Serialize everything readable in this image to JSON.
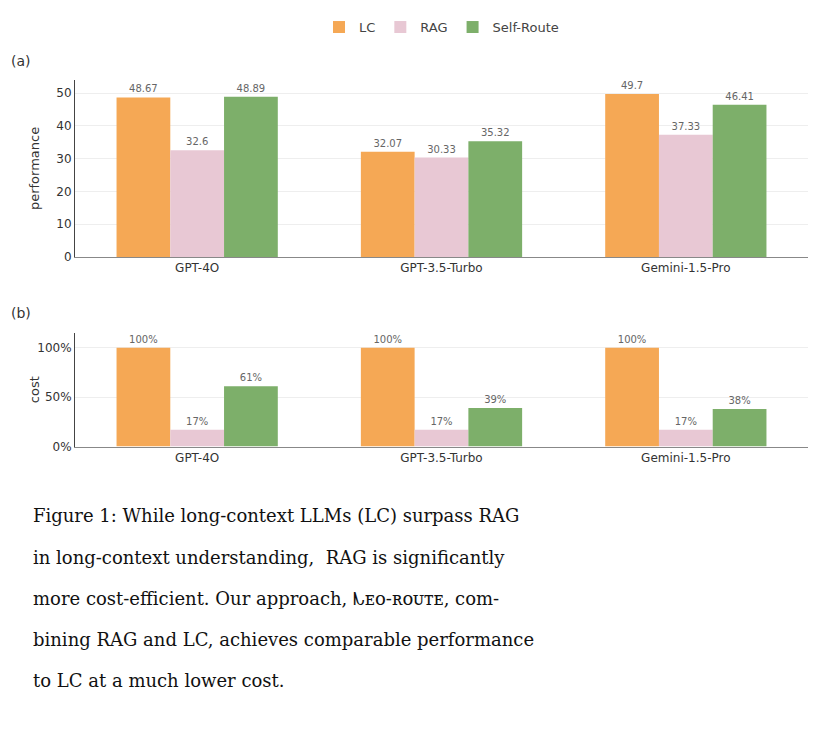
{
  "chart_data": [
    {
      "type": "bar",
      "title": "(a)",
      "y_label": "performance",
      "categories": [
        "GPT-4O",
        "GPT-3.5-Turbo",
        "Gemini-1.5-Pro"
      ],
      "series": [
        {
          "name": "LC",
          "color": "#F5A855",
          "values": [
            48.67,
            32.07,
            49.7
          ]
        },
        {
          "name": "RAG",
          "color": "#E8C8D4",
          "values": [
            32.6,
            30.33,
            37.33
          ]
        },
        {
          "name": "Self-Route",
          "color": "#7DAF6A",
          "values": [
            48.89,
            35.32,
            46.41
          ]
        }
      ],
      "ylim": [
        0,
        54
      ],
      "yticks": [
        0,
        10,
        20,
        30,
        40,
        50
      ],
      "grid": true,
      "data_labels": true,
      "legend": "top"
    },
    {
      "type": "bar",
      "title": "(b)",
      "y_label": "cost",
      "categories": [
        "GPT-4O",
        "GPT-3.5-Turbo",
        "Gemini-1.5-Pro"
      ],
      "series": [
        {
          "name": "LC",
          "color": "#F5A855",
          "values": [
            1.0,
            1.0,
            1.0
          ],
          "value_labels": [
            "100%",
            "100%",
            "100%"
          ]
        },
        {
          "name": "RAG",
          "color": "#E8C8D4",
          "values": [
            0.17,
            0.17,
            0.17
          ],
          "value_labels": [
            "17%",
            "17%",
            "17%"
          ]
        },
        {
          "name": "Self-Route",
          "color": "#7DAF6A",
          "values": [
            0.61,
            0.39,
            0.38
          ],
          "value_labels": [
            "61%",
            "39%",
            "38%"
          ]
        }
      ],
      "ylim": [
        0,
        1.15
      ],
      "yticks": [
        {
          "value": 0.0,
          "label": "0%"
        },
        {
          "value": 0.5,
          "label": "50%"
        },
        {
          "value": 1.0,
          "label": "100%"
        }
      ],
      "grid": true,
      "data_labels": true,
      "annotations": [
        "Figure 1: While long-context LLMs (LC) surpass RAG",
        "in long-context understanding,  RAG is significantly",
        "more cost-efficient. Our approach, ᗃᴇᴏ-ʀᴏᴜᴛᴇ, com-",
        "bining RAG and LC, achieves comparable performance",
        "to LC at a much lower cost."
      ]
    }
  ]
}
